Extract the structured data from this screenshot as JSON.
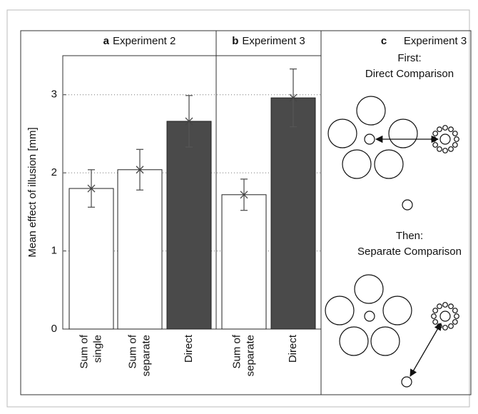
{
  "chart_data": [
    {
      "type": "bar",
      "panel": "a",
      "title": "Experiment 2",
      "ylabel": "Mean effect of illusion [mm]",
      "categories": [
        [
          "Sum of",
          "single"
        ],
        [
          "Sum of",
          "separate"
        ],
        [
          "Direct"
        ]
      ],
      "values": [
        1.8,
        2.04,
        2.66
      ],
      "errors": [
        0.24,
        0.26,
        0.33
      ],
      "colors": [
        "#ffffff",
        "#ffffff",
        "#4a4a4a"
      ],
      "ylim": [
        0,
        3.5
      ],
      "yticks": [
        0,
        1,
        2,
        3
      ],
      "grid": true
    },
    {
      "type": "bar",
      "panel": "b",
      "title": "Experiment 3",
      "categories": [
        [
          "Sum of",
          "separate"
        ],
        [
          "Direct"
        ]
      ],
      "values": [
        1.72,
        2.96
      ],
      "errors": [
        0.2,
        0.37
      ],
      "colors": [
        "#ffffff",
        "#4a4a4a"
      ],
      "ylim": [
        0,
        3.5
      ],
      "grid": true
    }
  ],
  "panel_c": {
    "panel": "c",
    "title": "Experiment 3",
    "first": "First:",
    "first_task": "Direct Comparison",
    "then": "Then:",
    "then_task": "Separate Comparison"
  }
}
